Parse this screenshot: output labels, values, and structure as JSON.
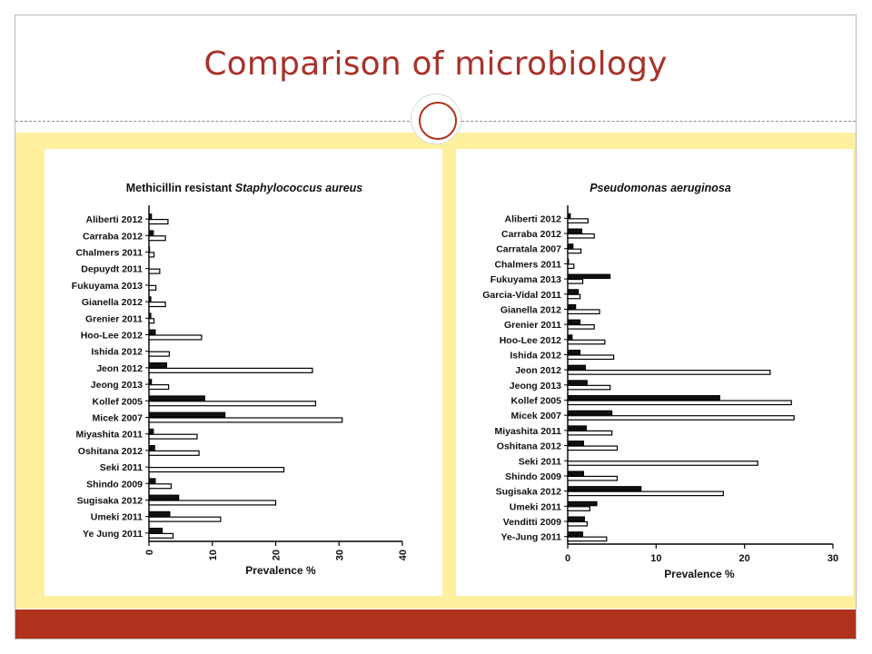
{
  "slide": {
    "title": "Comparison of microbiology",
    "colors": {
      "title": "#a8322a",
      "band": "#fff0a0",
      "footer": "#b0311c"
    }
  },
  "chart_data": [
    {
      "type": "bar",
      "title_plain": "Methicillin  resistant ",
      "title_italic": "Staphylococcus aureus",
      "xlabel": "Prevalence %",
      "ylabel": "",
      "xlim": [
        0,
        40
      ],
      "xticks": [
        0,
        10,
        20,
        30,
        40
      ],
      "orientation": "horizontal",
      "categories": [
        "Aliberti 2012",
        "Carraba 2012",
        "Chalmers 2011",
        "Depuydt 2011",
        "Fukuyama 2013",
        "Gianella 2012",
        "Grenier 2011",
        "Hoo-Lee 2012",
        "Ishida 2012",
        "Jeon 2012",
        "Jeong 2013",
        "Kollef 2005",
        "Micek 2007",
        "Miyashita 2011",
        "Oshitana 2012",
        "Seki 2011",
        "Shindo 2009",
        "Sugisaka 2012",
        "Umeki 2011",
        "Ye Jung 2011"
      ],
      "series": [
        {
          "fill": "#111111",
          "values": [
            0.4,
            0.7,
            0.1,
            0.0,
            0.0,
            0.3,
            0.3,
            1.0,
            0.0,
            2.8,
            0.4,
            8.8,
            12.0,
            0.7,
            0.9,
            0.0,
            1.0,
            4.7,
            3.3,
            2.1
          ]
        },
        {
          "fill": "#ffffff",
          "values": [
            3.0,
            2.6,
            0.8,
            1.7,
            1.1,
            2.6,
            0.8,
            8.3,
            3.2,
            25.8,
            3.1,
            26.3,
            30.5,
            7.6,
            7.9,
            21.3,
            3.5,
            20.0,
            11.3,
            3.8
          ]
        }
      ]
    },
    {
      "type": "bar",
      "title_plain": "",
      "title_italic": "Pseudomonas aeruginosa",
      "xlabel": "Prevalence %",
      "ylabel": "",
      "xlim": [
        0,
        30
      ],
      "xticks": [
        0,
        10,
        20,
        30
      ],
      "orientation": "horizontal",
      "categories": [
        "Aliberti 2012",
        "Carraba 2012",
        "Carratala 2007",
        "Chalmers 2011",
        "Fukuyama 2013",
        "Garcia-Vidal 2011",
        "Gianella 2012",
        "Grenier 2011",
        "Hoo-Lee 2012",
        "Ishida 2012",
        "Jeon 2012",
        "Jeong 2013",
        "Kollef 2005",
        "Micek 2007",
        "Miyashita 2011",
        "Oshitana 2012",
        "Seki 2011",
        "Shindo 2009",
        "Sugisaka 2012",
        "Umeki 2011",
        "Venditti 2009",
        "Ye-Jung 2011"
      ],
      "series": [
        {
          "fill": "#111111",
          "values": [
            0.3,
            1.6,
            0.6,
            0.1,
            4.8,
            1.2,
            0.9,
            1.4,
            0.5,
            1.4,
            2.0,
            2.2,
            17.2,
            5.0,
            2.1,
            1.8,
            0.0,
            1.8,
            8.3,
            3.3,
            1.9,
            1.7
          ]
        },
        {
          "fill": "#ffffff",
          "values": [
            2.3,
            3.0,
            1.5,
            0.7,
            1.7,
            1.4,
            3.6,
            3.0,
            4.2,
            5.2,
            22.9,
            4.8,
            25.3,
            25.6,
            5.0,
            5.6,
            21.5,
            5.6,
            17.6,
            2.5,
            2.2,
            4.4
          ]
        }
      ]
    }
  ]
}
